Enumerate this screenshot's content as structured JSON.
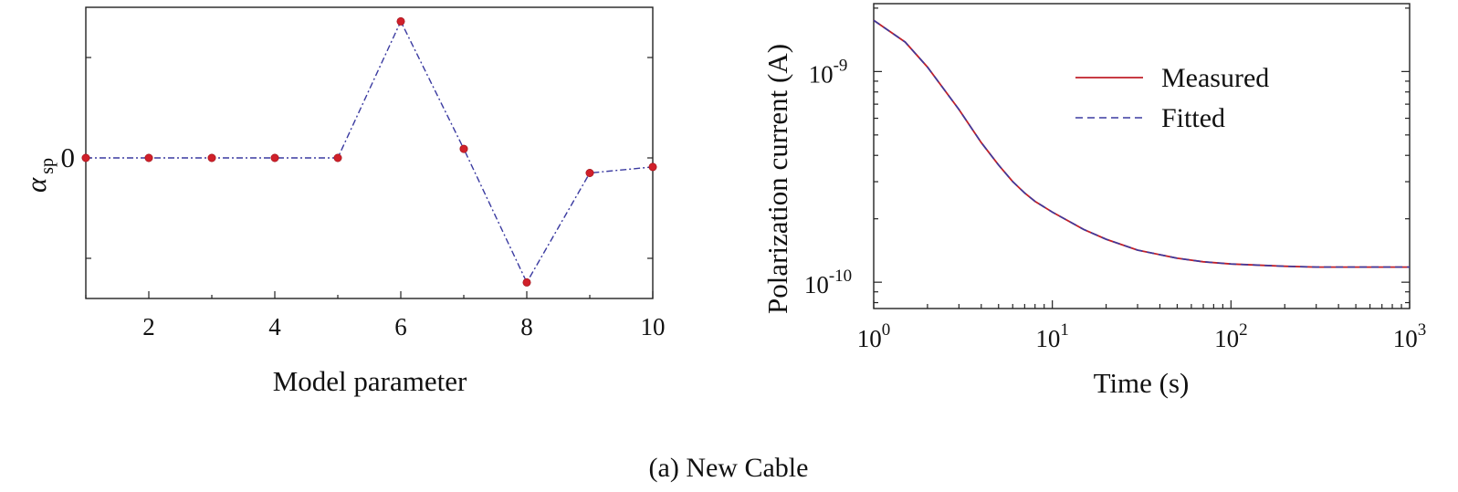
{
  "caption": "(a) New Cable",
  "colors": {
    "marker": "#d0202a",
    "dashdot_line": "#3a3aa0",
    "measured": "#c0202a",
    "fitted": "#3a3aa0",
    "axis": "#222222"
  },
  "chart_data": [
    {
      "type": "line",
      "title": "",
      "xlabel": "Model parameter",
      "ylabel_main": "α",
      "ylabel_sub": "sp",
      "x": [
        1,
        2,
        3,
        4,
        5,
        6,
        7,
        8,
        9,
        10
      ],
      "series": [
        {
          "name": "alpha_sp",
          "values": [
            0,
            0,
            0,
            0,
            0,
            1.36,
            0.09,
            -1.24,
            -0.15,
            -0.09
          ],
          "style": "dash-dot with markers"
        }
      ],
      "xlim": [
        1,
        10
      ],
      "ylim": [
        -1.4,
        1.5
      ],
      "xticks": [
        2,
        4,
        6,
        8,
        10
      ],
      "xtick_labels": [
        "2",
        "4",
        "6",
        "8",
        "10"
      ],
      "xminor": [
        1,
        3,
        5,
        7,
        9
      ],
      "yticks": [
        -1,
        0,
        1
      ],
      "ytick_labels": [
        "",
        "0",
        ""
      ]
    },
    {
      "type": "line",
      "title": "",
      "xlabel": "Time (s)",
      "ylabel": "Polarization current (A)",
      "xscale": "log",
      "yscale": "log",
      "xlim": [
        1,
        1000
      ],
      "ylim": [
        7.5e-11,
        2.1e-09
      ],
      "x": [
        1,
        1.5,
        2,
        3,
        4,
        5,
        6,
        7,
        8,
        10,
        15,
        20,
        30,
        50,
        70,
        100,
        200,
        300,
        500,
        1000
      ],
      "series": [
        {
          "name": "Measured",
          "values": [
            1.75e-09,
            1.38e-09,
            1.05e-09,
            6.6e-10,
            4.6e-10,
            3.6e-10,
            3e-10,
            2.65e-10,
            2.42e-10,
            2.15e-10,
            1.78e-10,
            1.6e-10,
            1.42e-10,
            1.3e-10,
            1.25e-10,
            1.22e-10,
            1.19e-10,
            1.18e-10,
            1.18e-10,
            1.18e-10
          ]
        },
        {
          "name": "Fitted",
          "values": [
            1.75e-09,
            1.38e-09,
            1.05e-09,
            6.6e-10,
            4.6e-10,
            3.6e-10,
            3e-10,
            2.65e-10,
            2.42e-10,
            2.15e-10,
            1.78e-10,
            1.6e-10,
            1.42e-10,
            1.3e-10,
            1.25e-10,
            1.22e-10,
            1.19e-10,
            1.18e-10,
            1.18e-10,
            1.18e-10
          ]
        }
      ],
      "xtick_base": "10",
      "xtick_exponents": [
        "0",
        "1",
        "2",
        "3"
      ],
      "ytick_base": "10",
      "ytick_exponents": [
        "-10",
        "-9"
      ],
      "legend": [
        "Measured",
        "Fitted"
      ],
      "legend_position": "top-right"
    }
  ]
}
